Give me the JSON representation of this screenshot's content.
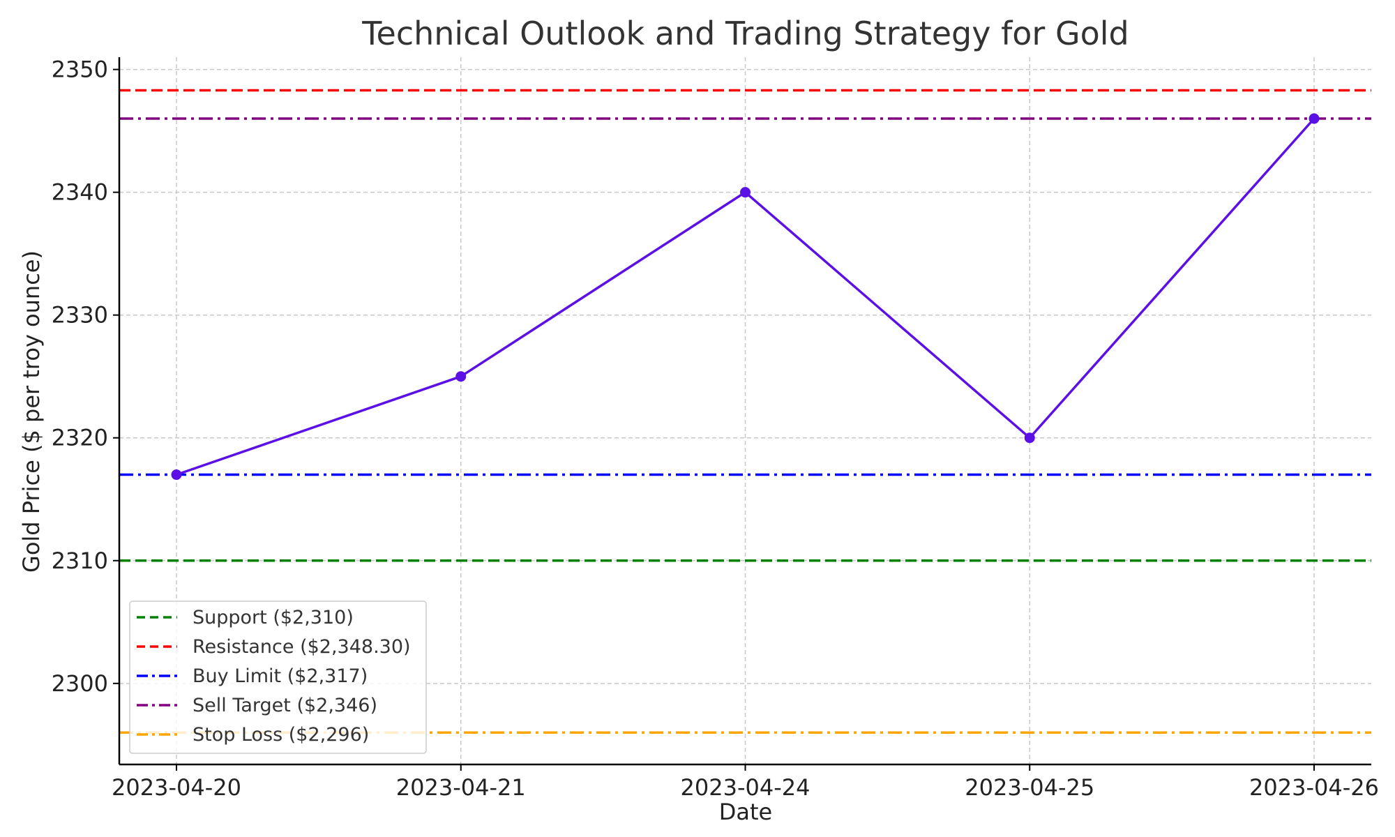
{
  "chart_data": {
    "type": "line",
    "title": "Technical Outlook and Trading Strategy for Gold",
    "xlabel": "Date",
    "ylabel": "Gold Price ($ per troy ounce)",
    "categories": [
      "2023-04-20",
      "2023-04-21",
      "2023-04-24",
      "2023-04-25",
      "2023-04-26"
    ],
    "series": [
      {
        "values": [
          2317,
          2325,
          2340,
          2320,
          2346
        ],
        "color": "#5b10e6",
        "marker": "circle"
      }
    ],
    "ylim": [
      2293.4,
      2351
    ],
    "yticks": [
      2300,
      2310,
      2320,
      2330,
      2340,
      2350
    ],
    "grid": true,
    "legend_position": "lower-left",
    "reference_lines": [
      {
        "name": "Support ($2,310)",
        "value": 2310,
        "color": "#008000",
        "style": "dashed"
      },
      {
        "name": "Resistance ($2,348.30)",
        "value": 2348.3,
        "color": "#ff0000",
        "style": "dashed"
      },
      {
        "name": "Buy Limit ($2,317)",
        "value": 2317,
        "color": "#0000ff",
        "style": "dashdot"
      },
      {
        "name": "Sell Target ($2,346)",
        "value": 2346,
        "color": "#800080",
        "style": "dashdot"
      },
      {
        "name": "Stop Loss ($2,296)",
        "value": 2296,
        "color": "#ffa500",
        "style": "dashdot"
      }
    ]
  }
}
